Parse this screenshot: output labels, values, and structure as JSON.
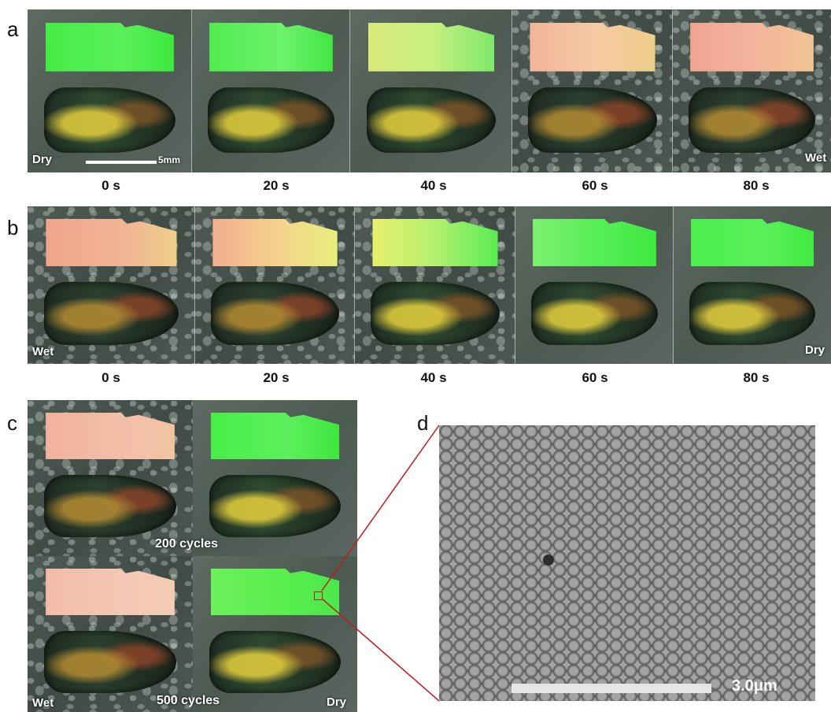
{
  "panels": {
    "a": {
      "label": "a",
      "start_label": "Dry",
      "end_label": "Wet",
      "scale_label": "5mm",
      "times": [
        "0 s",
        "20 s",
        "40 s",
        "60 s",
        "80 s"
      ]
    },
    "b": {
      "label": "b",
      "start_label": "Wet",
      "end_label": "Dry",
      "times": [
        "0 s",
        "20 s",
        "40 s",
        "60 s",
        "80 s"
      ]
    },
    "c": {
      "label": "c",
      "cycles_200": "200 cycles",
      "cycles_500": "500 cycles",
      "wet_label": "Wet",
      "dry_label": "Dry"
    },
    "d": {
      "label": "d",
      "scale_label": "3.0μm"
    }
  },
  "colors": {
    "dry_film": "#4cf04c",
    "wet_film": "#f0a88a",
    "mid_film": "#e8e070",
    "zoom_line": "#c0191b"
  }
}
